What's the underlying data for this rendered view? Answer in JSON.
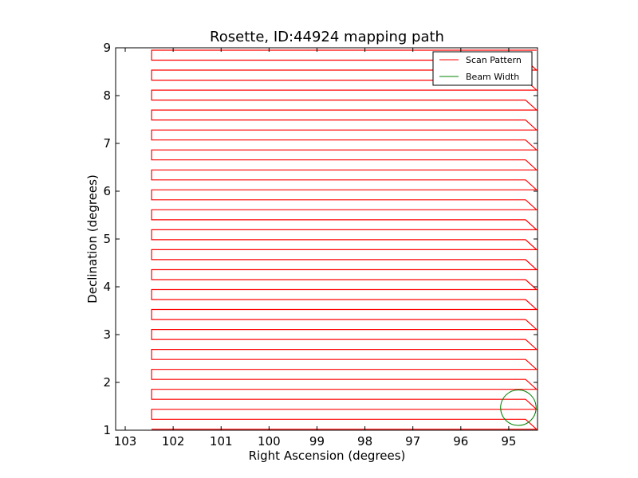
{
  "chart_data": {
    "type": "line",
    "title": "Rosette, ID:44924 mapping path",
    "xlabel": "Right Ascension (degrees)",
    "ylabel": "Declination (degrees)",
    "xlim": [
      103.2,
      94.4
    ],
    "ylim": [
      1,
      9
    ],
    "x_ticks": [
      103,
      102,
      101,
      100,
      99,
      98,
      97,
      96,
      95
    ],
    "x_tick_labels": [
      "103",
      "102",
      "101",
      "100",
      "99",
      "98",
      "97",
      "96",
      "95"
    ],
    "y_ticks": [
      1,
      2,
      3,
      4,
      5,
      6,
      7,
      8,
      9
    ],
    "y_tick_labels": [
      "1",
      "2",
      "3",
      "4",
      "5",
      "6",
      "7",
      "8",
      "9"
    ],
    "grid": false,
    "legend_position": "top-right",
    "scan": {
      "ra_left": 102.45,
      "ra_right_inner": 94.65,
      "ra_right_outer": 94.42,
      "dec_start": 1.02,
      "dec_end": 8.95,
      "num_rows": 39
    },
    "beam": {
      "center_ra": 94.8,
      "center_dec": 1.47,
      "radius_deg": 0.37
    },
    "series": [
      {
        "name": "Scan Pattern",
        "color": "#ff0000"
      },
      {
        "name": "Beam Width",
        "color": "#008000"
      }
    ]
  }
}
